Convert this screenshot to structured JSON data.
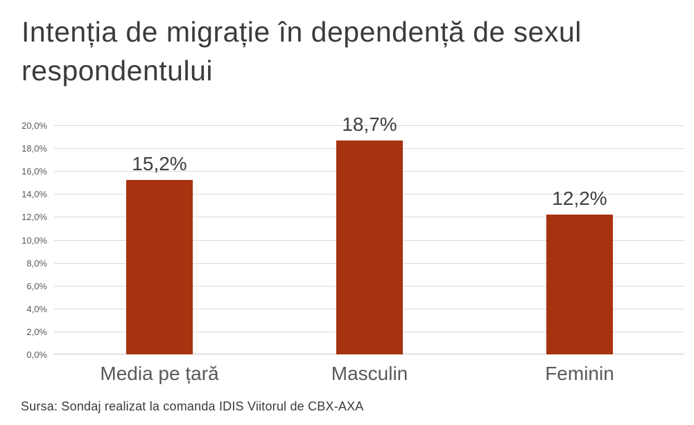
{
  "title": "Intenția de migrație în dependență de sexul respondentului",
  "source": "Sursa: Sondaj realizat la comanda IDIS Viitorul de CBX-AXA",
  "colors": {
    "bar": "#a7320f",
    "title_text": "#3b3b3b",
    "value_label_text": "#404040",
    "axis_text": "#595959",
    "gridline": "#d9d9d9",
    "background": "#ffffff"
  },
  "chart_data": {
    "type": "bar",
    "title": "Intenția de migrație în dependență de sexul respondentului",
    "categories": [
      "Media pe țară",
      "Masculin",
      "Feminin"
    ],
    "values": [
      15.2,
      18.7,
      12.2
    ],
    "value_labels": [
      "15,2%",
      "18,7%",
      "12,2%"
    ],
    "xlabel": "",
    "ylabel": "",
    "ylim": [
      0,
      20
    ],
    "ytick_step": 2,
    "ytick_labels": [
      "0,0%",
      "2,0%",
      "4,0%",
      "6,0%",
      "8,0%",
      "10,0%",
      "12,0%",
      "14,0%",
      "16,0%",
      "18,0%",
      "20,0%"
    ],
    "grid": true,
    "legend": false
  }
}
